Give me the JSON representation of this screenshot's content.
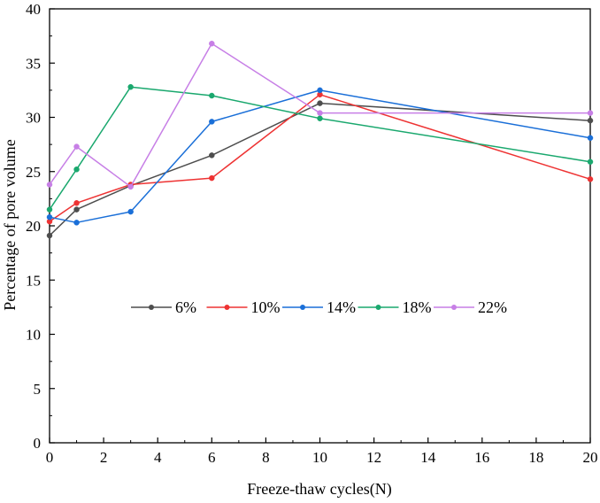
{
  "chart_data": {
    "type": "line",
    "title": "",
    "xlabel": "Freeze-thaw cycles(N)",
    "ylabel": "Percentage of pore volume",
    "xlim": [
      0,
      20
    ],
    "ylim": [
      0,
      40
    ],
    "xticks": [
      0,
      2,
      4,
      6,
      8,
      10,
      12,
      14,
      16,
      18,
      20
    ],
    "yticks": [
      0,
      5,
      10,
      15,
      20,
      25,
      30,
      35,
      40
    ],
    "grid": false,
    "legend_position": "center-left",
    "x": [
      0,
      1,
      3,
      6,
      10,
      20
    ],
    "series": [
      {
        "name": "6%",
        "color": "#4d4d4d",
        "values": [
          19.1,
          21.5,
          23.7,
          26.5,
          31.3,
          29.7
        ]
      },
      {
        "name": "10%",
        "color": "#ee3333",
        "values": [
          20.4,
          22.1,
          23.8,
          24.4,
          32.1,
          24.3
        ]
      },
      {
        "name": "14%",
        "color": "#1a6fd8",
        "values": [
          20.8,
          20.3,
          21.3,
          29.6,
          32.5,
          28.1
        ]
      },
      {
        "name": "18%",
        "color": "#1aa86e",
        "values": [
          21.5,
          25.2,
          32.8,
          32.0,
          29.9,
          25.9
        ]
      },
      {
        "name": "22%",
        "color": "#c77fe6",
        "values": [
          23.8,
          27.3,
          23.6,
          36.8,
          30.4,
          30.4
        ]
      }
    ]
  }
}
